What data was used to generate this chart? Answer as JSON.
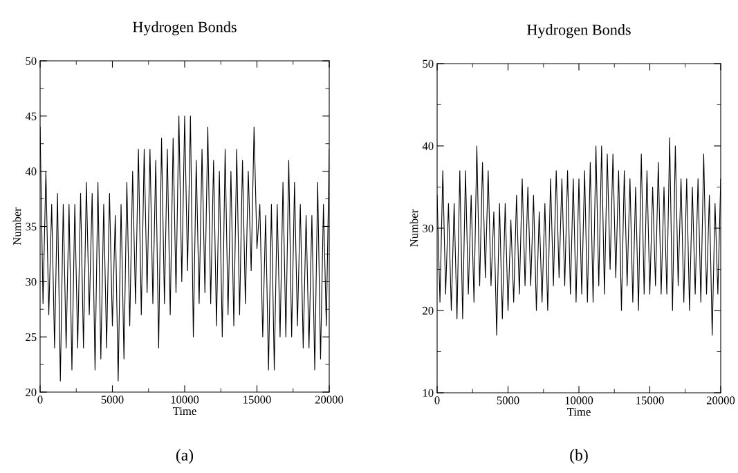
{
  "chart_data": [
    {
      "type": "line",
      "title": "Hydrogen Bonds",
      "xlabel": "Time",
      "ylabel": "Number",
      "annotations": [
        "(a)"
      ],
      "x": [
        0,
        200,
        400,
        600,
        800,
        1000,
        1200,
        1400,
        1600,
        1800,
        2000,
        2200,
        2400,
        2600,
        2800,
        3000,
        3200,
        3400,
        3600,
        3800,
        4000,
        4200,
        4400,
        4600,
        4800,
        5000,
        5200,
        5400,
        5600,
        5800,
        6000,
        6200,
        6400,
        6600,
        6800,
        7000,
        7200,
        7400,
        7600,
        7800,
        8000,
        8200,
        8400,
        8600,
        8800,
        9000,
        9200,
        9400,
        9600,
        9800,
        10000,
        10200,
        10400,
        10600,
        10800,
        11000,
        11200,
        11400,
        11600,
        11800,
        12000,
        12200,
        12400,
        12600,
        12800,
        13000,
        13200,
        13400,
        13600,
        13800,
        14000,
        14200,
        14400,
        14600,
        14800,
        15000,
        15200,
        15400,
        15600,
        15800,
        16000,
        16200,
        16400,
        16600,
        16800,
        17000,
        17200,
        17400,
        17600,
        17800,
        18000,
        18200,
        18400,
        18600,
        18800,
        19000,
        19200,
        19400,
        19600,
        19800,
        20000
      ],
      "series": [
        {
          "color": "#000000",
          "values": [
            44,
            28,
            40,
            27,
            37,
            24,
            38,
            21,
            37,
            24,
            37,
            22,
            37,
            24,
            38,
            24,
            39,
            27,
            38,
            22,
            39,
            23,
            37,
            24,
            38,
            26,
            36,
            21,
            37,
            23,
            39,
            26,
            40,
            28,
            42,
            27,
            42,
            29,
            42,
            28,
            41,
            24,
            43,
            28,
            42,
            27,
            43,
            29,
            45,
            30,
            45,
            31,
            45,
            25,
            41,
            28,
            42,
            29,
            44,
            28,
            41,
            26,
            40,
            25,
            42,
            27,
            40,
            26,
            42,
            27,
            41,
            28,
            40,
            31,
            44,
            33,
            37,
            25,
            36,
            22,
            37,
            22,
            37,
            25,
            39,
            25,
            41,
            25,
            39,
            26,
            37,
            24,
            36,
            24,
            36,
            22,
            39,
            23,
            37,
            26,
            42
          ]
        }
      ],
      "xlim": [
        0,
        20000
      ],
      "xticks": [
        0,
        5000,
        10000,
        15000,
        20000
      ],
      "ylim": [
        20,
        50
      ],
      "yticks": [
        20,
        25,
        30,
        35,
        40,
        45,
        50
      ],
      "grid": false,
      "legend": false,
      "marker": "none",
      "line_style": "solid"
    },
    {
      "type": "line",
      "title": "Hydrogen Bonds",
      "xlabel": "Time",
      "ylabel": "Number",
      "annotations": [
        "(b)"
      ],
      "x": [
        0,
        200,
        400,
        600,
        800,
        1000,
        1200,
        1400,
        1600,
        1800,
        2000,
        2200,
        2400,
        2600,
        2800,
        3000,
        3200,
        3400,
        3600,
        3800,
        4000,
        4200,
        4400,
        4600,
        4800,
        5000,
        5200,
        5400,
        5600,
        5800,
        6000,
        6200,
        6400,
        6600,
        6800,
        7000,
        7200,
        7400,
        7600,
        7800,
        8000,
        8200,
        8400,
        8600,
        8800,
        9000,
        9200,
        9400,
        9600,
        9800,
        10000,
        10200,
        10400,
        10600,
        10800,
        11000,
        11200,
        11400,
        11600,
        11800,
        12000,
        12200,
        12400,
        12600,
        12800,
        13000,
        13200,
        13400,
        13600,
        13800,
        14000,
        14200,
        14400,
        14600,
        14800,
        15000,
        15200,
        15400,
        15600,
        15800,
        16000,
        16200,
        16400,
        16600,
        16800,
        17000,
        17200,
        17400,
        17600,
        17800,
        18000,
        18200,
        18400,
        18600,
        18800,
        19000,
        19200,
        19400,
        19600,
        19800,
        20000
      ],
      "series": [
        {
          "color": "#000000",
          "values": [
            34,
            21,
            37,
            22,
            33,
            20,
            33,
            19,
            37,
            19,
            37,
            22,
            34,
            21,
            40,
            23,
            38,
            24,
            37,
            23,
            32,
            17,
            33,
            19,
            33,
            20,
            31,
            21,
            34,
            22,
            36,
            23,
            35,
            23,
            34,
            20,
            32,
            21,
            33,
            20,
            36,
            23,
            37,
            24,
            36,
            23,
            37,
            22,
            36,
            21,
            36,
            22,
            37,
            21,
            38,
            21,
            40,
            23,
            40,
            22,
            39,
            25,
            39,
            24,
            37,
            20,
            37,
            23,
            36,
            21,
            35,
            20,
            39,
            22,
            37,
            22,
            35,
            23,
            38,
            22,
            35,
            22,
            41,
            20,
            40,
            23,
            36,
            21,
            36,
            20,
            35,
            22,
            36,
            21,
            39,
            22,
            34,
            17,
            33,
            22,
            36
          ]
        }
      ],
      "xlim": [
        0,
        20000
      ],
      "xticks": [
        0,
        5000,
        10000,
        15000,
        20000
      ],
      "ylim": [
        10,
        50
      ],
      "yticks": [
        10,
        20,
        30,
        40,
        50
      ],
      "grid": false,
      "legend": false,
      "marker": "none",
      "line_style": "solid"
    }
  ]
}
